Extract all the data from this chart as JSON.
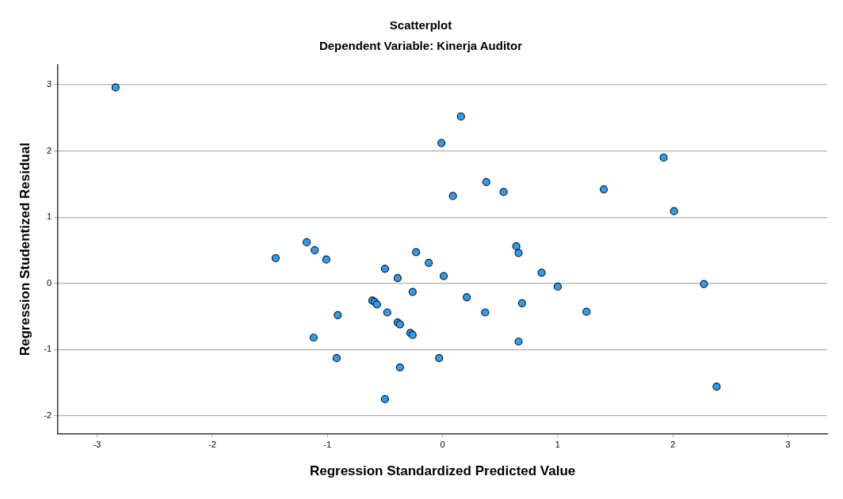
{
  "chart_data": {
    "type": "scatter",
    "title": "Scatterplot",
    "subtitle": "Dependent Variable: Kinerja Auditor",
    "xlabel": "Regression Standardized Predicted Value",
    "ylabel": "Regression Studentized Residual",
    "xlim": [
      -3.34,
      3.34
    ],
    "xticks": [
      -3,
      -2,
      -1,
      0,
      1,
      2,
      3
    ],
    "ylim": [
      -2.27,
      3.3
    ],
    "yticks": [
      -2,
      -1,
      0,
      1,
      2,
      3
    ],
    "grid": "y",
    "legend": false,
    "marker": "circle",
    "series": [
      {
        "color": "#2a9df4",
        "x": [
          -2.84,
          -0.01,
          -1.18,
          -1.11,
          -0.23,
          0.16,
          1.92,
          0.09,
          0.38,
          0.53,
          1.4,
          2.01,
          -1.45,
          -1.01,
          -0.5,
          -0.39,
          -0.12,
          0.01,
          -0.26,
          -0.61,
          -0.59,
          -0.57,
          -0.48,
          -0.91,
          -0.39,
          -0.37,
          -0.28,
          -0.26,
          -1.12,
          -0.92,
          -0.37,
          -0.03,
          -0.5,
          0.64,
          0.66,
          0.86,
          1.0,
          2.27,
          0.21,
          0.69,
          0.37,
          1.25,
          0.66,
          2.38
        ],
        "values": [
          2.96,
          2.12,
          0.62,
          0.5,
          0.47,
          2.52,
          1.9,
          1.32,
          1.53,
          1.38,
          1.42,
          1.09,
          0.38,
          0.36,
          0.22,
          0.08,
          0.31,
          0.11,
          -0.13,
          -0.26,
          -0.28,
          -0.32,
          -0.44,
          -0.48,
          -0.59,
          -0.62,
          -0.75,
          -0.78,
          -0.82,
          -1.13,
          -1.27,
          -1.13,
          -1.75,
          0.56,
          0.46,
          0.16,
          -0.05,
          -0.01,
          -0.21,
          -0.3,
          -0.44,
          -0.43,
          -0.88,
          -1.56
        ]
      }
    ]
  }
}
